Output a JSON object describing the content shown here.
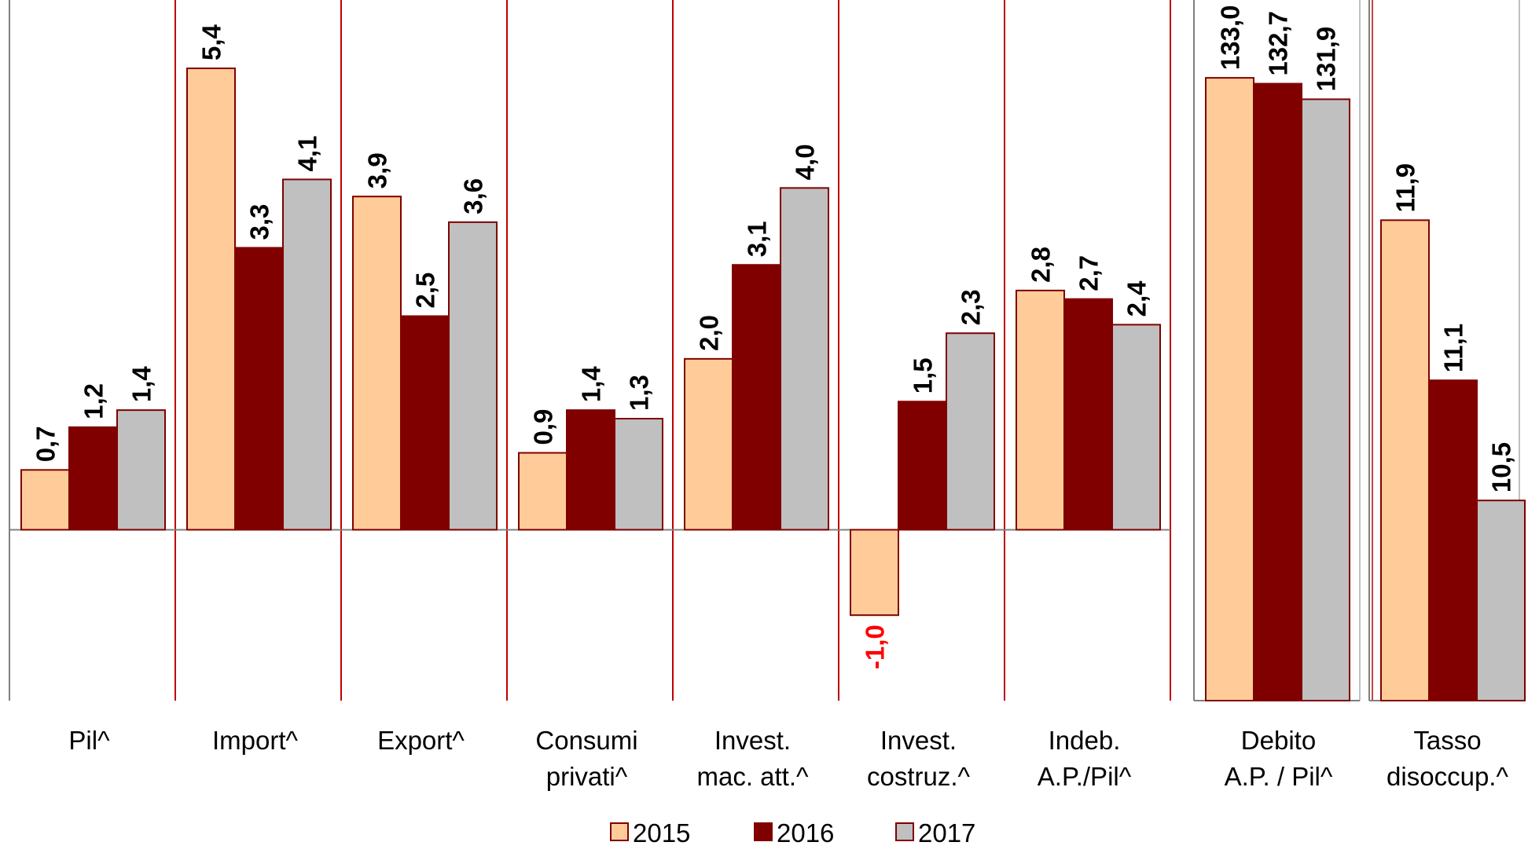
{
  "chart_data": {
    "type": "bar",
    "categories": [
      [
        "Pil^"
      ],
      [
        "Import^"
      ],
      [
        "Export^"
      ],
      [
        "Consumi",
        "privati^"
      ],
      [
        "Invest.",
        "mac. att.^"
      ],
      [
        "Invest.",
        "costruz.^"
      ],
      [
        "Indeb.",
        "A.P./Pil^"
      ],
      [
        "Debito",
        "A.P.  / Pil^"
      ],
      [
        "Tasso",
        "disoccup.^"
      ]
    ],
    "series": [
      {
        "name": "2015",
        "color": "#FFCC99",
        "values": [
          0.7,
          5.4,
          3.9,
          0.9,
          2.0,
          -1.0,
          2.8,
          133.0,
          11.9
        ],
        "labels": [
          "0,7",
          "5,4",
          "3,9",
          "0,9",
          "2,0",
          "-1,0",
          "2,8",
          "133,0",
          "11,9"
        ]
      },
      {
        "name": "2016",
        "color": "#800000",
        "values": [
          1.2,
          3.3,
          2.5,
          1.4,
          3.1,
          1.5,
          2.7,
          132.7,
          11.1
        ],
        "labels": [
          "1,2",
          "3,3",
          "2,5",
          "1,4",
          "3,1",
          "1,5",
          "2,7",
          "132,7",
          "11,1"
        ]
      },
      {
        "name": "2017",
        "color": "#C0C0C0",
        "values": [
          1.4,
          4.1,
          3.6,
          1.3,
          4.0,
          2.3,
          2.4,
          131.9,
          10.5
        ],
        "labels": [
          "1,4",
          "4,1",
          "3,6",
          "1,3",
          "4,0",
          "2,3",
          "2,4",
          "131,9",
          "10,5"
        ]
      }
    ],
    "panels": [
      {
        "categories": [
          0,
          1,
          2,
          3,
          4,
          5,
          6
        ],
        "ylim": [
          -2.0,
          6.2
        ]
      },
      {
        "categories": [
          7
        ],
        "ylim": [
          101.0,
          137.0
        ]
      },
      {
        "categories": [
          8
        ],
        "ylim": [
          9.5,
          13.0
        ]
      }
    ],
    "negative_label_color": "#FF0000",
    "separator_color": "#C00000",
    "bar_edge_color": "#800000",
    "legend_position": "bottom-center"
  }
}
